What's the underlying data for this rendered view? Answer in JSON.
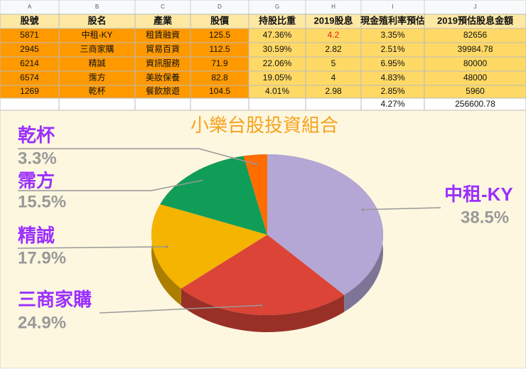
{
  "table": {
    "columns": [
      "A",
      "B",
      "C",
      "D",
      "G",
      "H",
      "I",
      "J"
    ],
    "header": [
      "股號",
      "股名",
      "產業",
      "股價",
      "持股比重",
      "2019股息",
      "現金殖利率預估",
      "2019預估股息金額"
    ],
    "rows": [
      [
        "5871",
        "中租-KY",
        "租賃融資",
        "125.5",
        "47.36%",
        "4.2",
        "3.35%",
        "82656"
      ],
      [
        "2945",
        "三商家購",
        "貿易百貨",
        "112.5",
        "30.59%",
        "2.82",
        "2.51%",
        "39984.78"
      ],
      [
        "6214",
        "精誠",
        "資訊服務",
        "71.9",
        "22.06%",
        "5",
        "6.95%",
        "80000"
      ],
      [
        "6574",
        "霈方",
        "美妝保養",
        "82.8",
        "19.05%",
        "4",
        "4.83%",
        "48000"
      ],
      [
        "1269",
        "乾杯",
        "餐飲旅遊",
        "104.5",
        "4.01%",
        "2.98",
        "2.85%",
        "5960"
      ]
    ],
    "total_row": {
      "yield": "4.27%",
      "amount": "256600.78"
    }
  },
  "chart_data": {
    "type": "pie",
    "title": "小樂台股投資組合",
    "categories": [
      "中租-KY",
      "三商家購",
      "精誠",
      "霈方",
      "乾杯"
    ],
    "values": [
      38.5,
      24.9,
      17.9,
      15.5,
      3.3
    ],
    "value_labels": [
      "38.5%",
      "24.9%",
      "17.9%",
      "15.5%",
      "3.3%"
    ],
    "colors": [
      "#b4a7d6",
      "#db4437",
      "#f4b400",
      "#0f9d58",
      "#ff6d01"
    ]
  }
}
